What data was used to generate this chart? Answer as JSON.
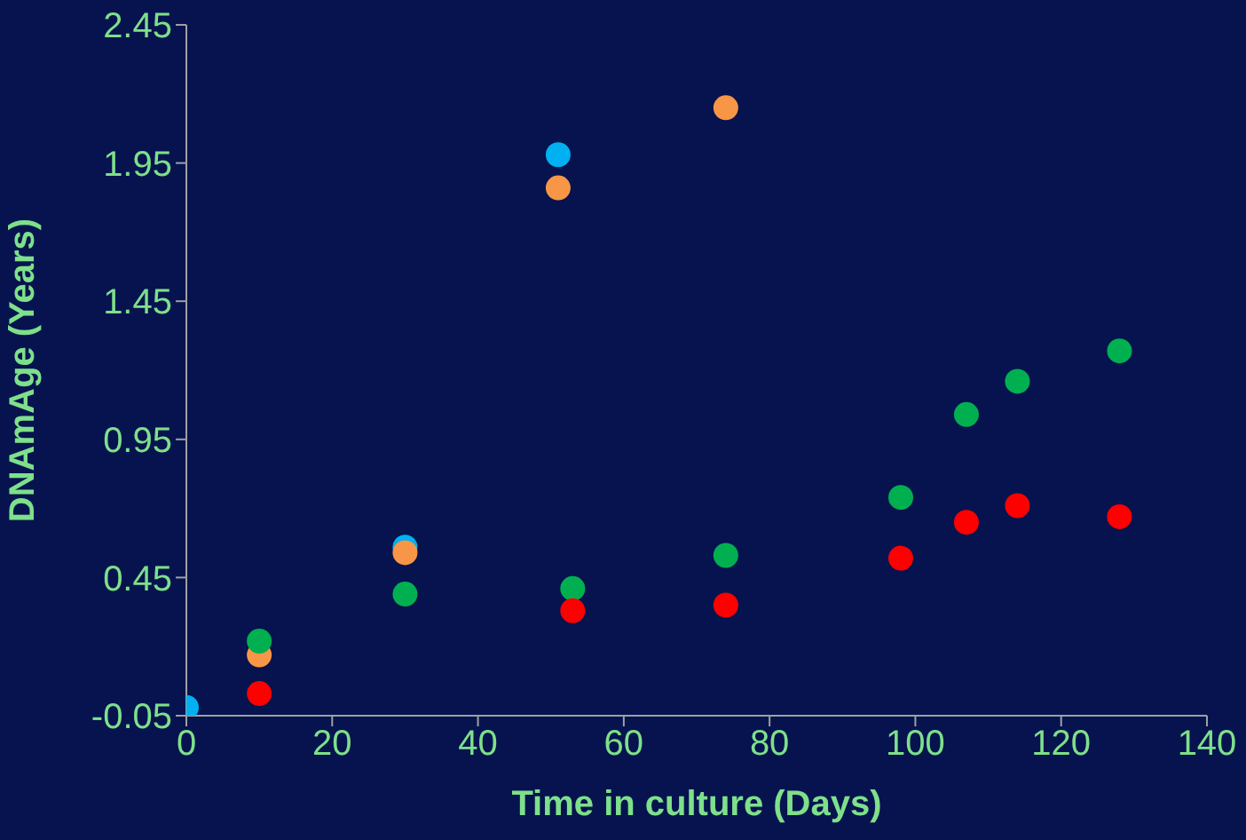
{
  "chart_data": {
    "type": "scatter",
    "xlabel": "Time in culture (Days)",
    "ylabel": "DNAmAge (Years)",
    "xlim": [
      0,
      140
    ],
    "xticks": [
      0,
      20,
      40,
      60,
      80,
      100,
      120,
      140
    ],
    "ylim": [
      -0.05,
      2.45
    ],
    "yticks": [
      -0.05,
      0.45,
      0.95,
      1.45,
      1.95,
      2.45
    ],
    "grid": false,
    "legend": false,
    "marker": "circle",
    "series": [
      {
        "color": "#00b0f0",
        "x": [
          0,
          30,
          51
        ],
        "values": [
          -0.02,
          0.56,
          1.98
        ]
      },
      {
        "color": "#f79646",
        "x": [
          10,
          30,
          51,
          74
        ],
        "values": [
          0.17,
          0.54,
          1.86,
          2.15
        ]
      },
      {
        "color": "#00b050",
        "x": [
          10,
          30,
          53,
          74,
          98,
          107,
          114,
          128
        ],
        "values": [
          0.22,
          0.39,
          0.41,
          0.53,
          0.74,
          1.04,
          1.16,
          1.27
        ]
      },
      {
        "color": "#ff0000",
        "x": [
          10,
          53,
          74,
          98,
          107,
          114,
          128
        ],
        "values": [
          0.03,
          0.33,
          0.35,
          0.52,
          0.65,
          0.71,
          0.67
        ]
      }
    ]
  }
}
